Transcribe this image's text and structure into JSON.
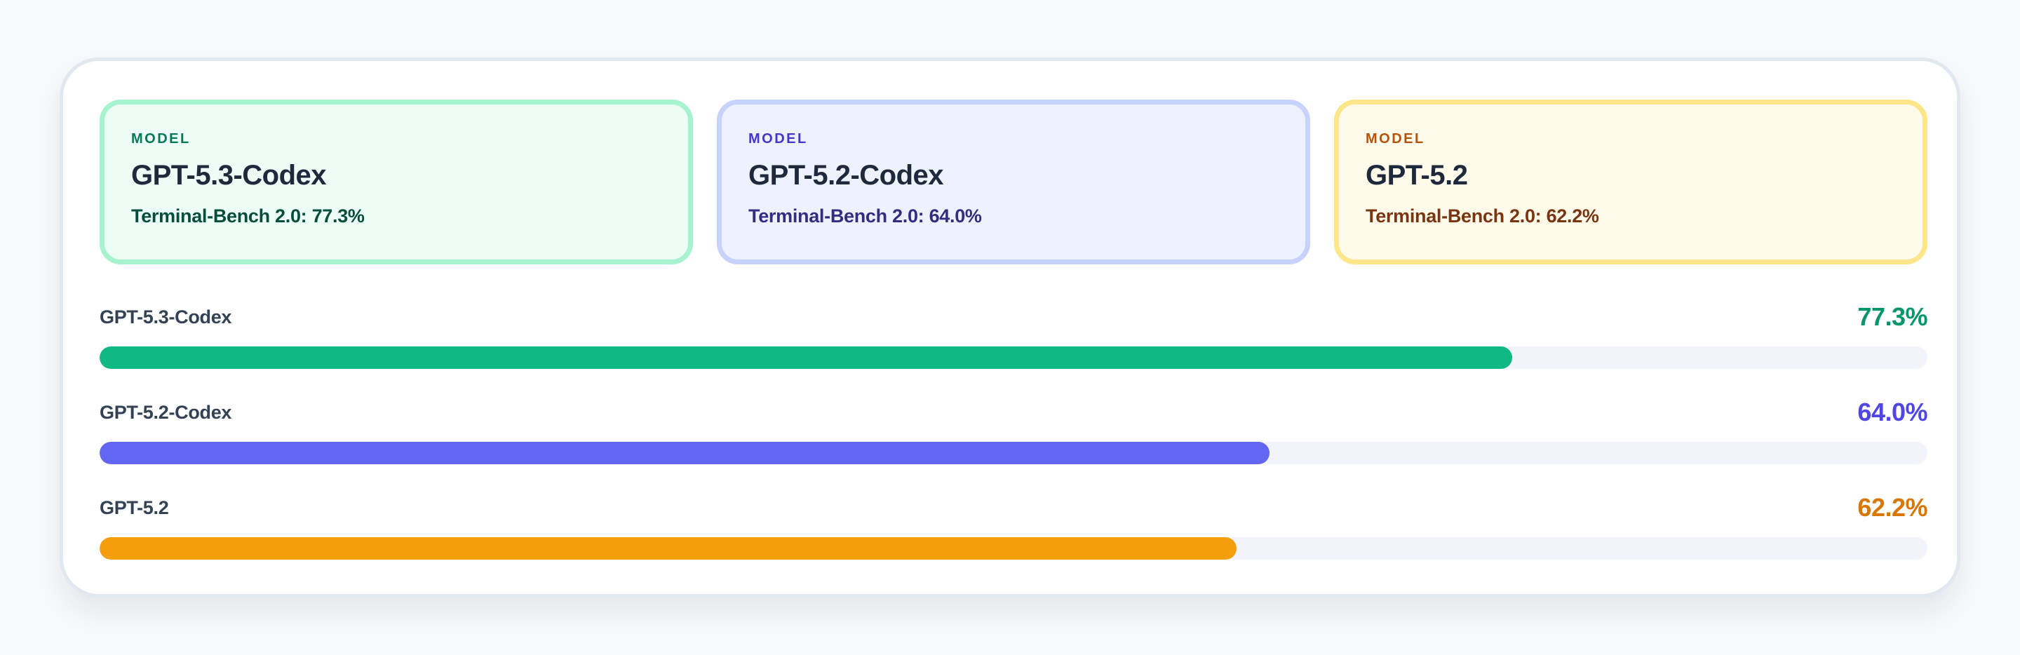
{
  "cards": [
    {
      "label": "MODEL",
      "title": "GPT-5.3-Codex",
      "subtitle": "Terminal-Bench 2.0: 77.3%",
      "bg": "#ecfdf5",
      "border": "#a7f3d0",
      "label_color": "#047857",
      "sub_color": "#064e3b"
    },
    {
      "label": "MODEL",
      "title": "GPT-5.2-Codex",
      "subtitle": "Terminal-Bench 2.0: 64.0%",
      "bg": "#eef2ff",
      "border": "#c7d2fe",
      "label_color": "#4338ca",
      "sub_color": "#312e81"
    },
    {
      "label": "MODEL",
      "title": "GPT-5.2",
      "subtitle": "Terminal-Bench 2.0: 62.2%",
      "bg": "#fffbeb",
      "border": "#fde68a",
      "label_color": "#b45309",
      "sub_color": "#78350f"
    }
  ],
  "bars": [
    {
      "name": "GPT-5.3-Codex",
      "value_label": "77.3%",
      "value": 77.3,
      "color": "#10b981",
      "text_color": "#059669"
    },
    {
      "name": "GPT-5.2-Codex",
      "value_label": "64.0%",
      "value": 64.0,
      "color": "#6366f1",
      "text_color": "#4f46e5"
    },
    {
      "name": "GPT-5.2",
      "value_label": "62.2%",
      "value": 62.2,
      "color": "#f59e0b",
      "text_color": "#d97706"
    }
  ]
}
